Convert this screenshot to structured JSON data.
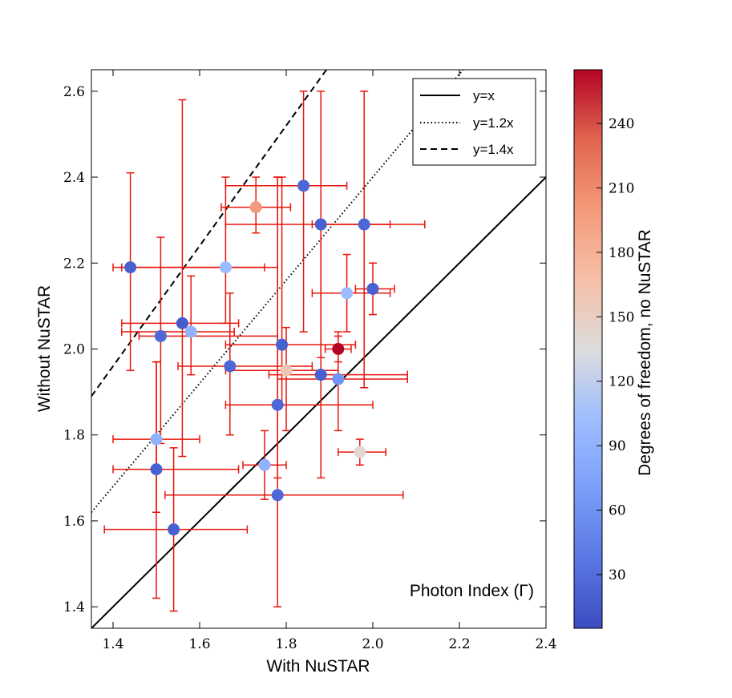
{
  "chart_data": {
    "type": "scatter",
    "xlabel": "With NuSTAR",
    "ylabel": "Without NuSTAR",
    "annotation": "Photon Index (Γ)",
    "xlim": [
      1.35,
      2.4
    ],
    "ylim": [
      1.35,
      2.65
    ],
    "xticks": [
      1.4,
      1.6,
      1.8,
      2.0,
      2.2,
      2.4
    ],
    "xtick_labels": [
      "1.4",
      "1.6",
      "1.8",
      "2.0",
      "2.2",
      "2.4"
    ],
    "yticks": [
      1.4,
      1.6,
      1.8,
      2.0,
      2.2,
      2.4,
      2.6
    ],
    "ytick_labels": [
      "1.4",
      "1.6",
      "1.8",
      "2.0",
      "2.2",
      "2.4",
      "2.6"
    ],
    "lines": [
      {
        "label": "y=x",
        "slope": 1.0,
        "style": "solid"
      },
      {
        "label": "y=1.2x",
        "slope": 1.2,
        "style": "dotted"
      },
      {
        "label": "y=1.4x",
        "slope": 1.4,
        "style": "dashed"
      }
    ],
    "legend_position": "top-right",
    "errorbar_color": "#e8140c",
    "colorbar": {
      "label": "Degrees of freedom, no NuSTAR",
      "range": [
        5,
        265
      ],
      "ticks": [
        30,
        60,
        90,
        120,
        150,
        180,
        210,
        240
      ],
      "tick_labels": [
        "30",
        "60",
        "90",
        "120",
        "150",
        "180",
        "210",
        "240"
      ],
      "colormap": "coolwarm"
    },
    "points": [
      {
        "x": 1.44,
        "y": 2.19,
        "xerr": [
          0.04,
          0.31
        ],
        "yerr": [
          0.24,
          0.22
        ],
        "dof": 20
      },
      {
        "x": 1.51,
        "y": 2.03,
        "xerr": [
          0.05,
          0.27
        ],
        "yerr": [
          0.25,
          0.23
        ],
        "dof": 25
      },
      {
        "x": 1.56,
        "y": 2.06,
        "xerr": [
          0.14,
          0.13
        ],
        "yerr": [
          0.31,
          0.52
        ],
        "dof": 15
      },
      {
        "x": 1.58,
        "y": 2.04,
        "xerr": [
          0.16,
          0.1
        ],
        "yerr": [
          0.1,
          0.13
        ],
        "dof": 90
      },
      {
        "x": 1.66,
        "y": 2.19,
        "xerr": [
          0.24,
          0.12
        ],
        "yerr": [
          0.13,
          0.21
        ],
        "dof": 100
      },
      {
        "x": 1.73,
        "y": 2.33,
        "xerr": [
          0.08,
          0.08
        ],
        "yerr": [
          0.06,
          0.07
        ],
        "dof": 200
      },
      {
        "x": 1.84,
        "y": 2.38,
        "xerr": [
          0.18,
          0.1
        ],
        "yerr": [
          0.34,
          0.22
        ],
        "dof": 25
      },
      {
        "x": 1.88,
        "y": 2.29,
        "xerr": [
          0.22,
          0.16
        ],
        "yerr": [
          0.31,
          0.31
        ],
        "dof": 20
      },
      {
        "x": 1.98,
        "y": 2.29,
        "xerr": [
          0.12,
          0.14
        ],
        "yerr": [
          0.38,
          0.31
        ],
        "dof": 25
      },
      {
        "x": 1.94,
        "y": 2.13,
        "xerr": [
          0.08,
          0.1
        ],
        "yerr": [
          0.09,
          0.09
        ],
        "dof": 100
      },
      {
        "x": 2.0,
        "y": 2.14,
        "xerr": [
          0.04,
          0.05
        ],
        "yerr": [
          0.06,
          0.06
        ],
        "dof": 20
      },
      {
        "x": 1.92,
        "y": 2.0,
        "xerr": [
          0.03,
          0.03
        ],
        "yerr": [
          0.03,
          0.03
        ],
        "dof": 265
      },
      {
        "x": 1.79,
        "y": 2.01,
        "xerr": [
          0.13,
          0.17
        ],
        "yerr": [
          0.14,
          0.39
        ],
        "dof": 20
      },
      {
        "x": 1.67,
        "y": 1.96,
        "xerr": [
          0.12,
          0.19
        ],
        "yerr": [
          0.16,
          0.17
        ],
        "dof": 25
      },
      {
        "x": 1.8,
        "y": 1.95,
        "xerr": [
          0.14,
          0.12
        ],
        "yerr": [
          0.14,
          0.1
        ],
        "dof": 160
      },
      {
        "x": 1.88,
        "y": 1.94,
        "xerr": [
          0.12,
          0.2
        ],
        "yerr": [
          0.24,
          0.36
        ],
        "dof": 20
      },
      {
        "x": 1.92,
        "y": 1.93,
        "xerr": [
          0.14,
          0.16
        ],
        "yerr": [
          0.12,
          0.11
        ],
        "dof": 60
      },
      {
        "x": 1.78,
        "y": 1.87,
        "xerr": [
          0.12,
          0.22
        ],
        "yerr": [
          0.17,
          0.53
        ],
        "dof": 25
      },
      {
        "x": 1.5,
        "y": 1.79,
        "xerr": [
          0.1,
          0.1
        ],
        "yerr": [
          0.17,
          0.18
        ],
        "dof": 90
      },
      {
        "x": 1.97,
        "y": 1.76,
        "xerr": [
          0.05,
          0.06
        ],
        "yerr": [
          0.03,
          0.03
        ],
        "dof": 140
      },
      {
        "x": 1.5,
        "y": 1.72,
        "xerr": [
          0.1,
          0.19
        ],
        "yerr": [
          0.3,
          0.25
        ],
        "dof": 20
      },
      {
        "x": 1.75,
        "y": 1.73,
        "xerr": [
          0.05,
          0.05
        ],
        "yerr": [
          0.08,
          0.08
        ],
        "dof": 90
      },
      {
        "x": 1.78,
        "y": 1.66,
        "xerr": [
          0.26,
          0.29
        ],
        "yerr": [
          0.26,
          0.74
        ],
        "dof": 25
      },
      {
        "x": 1.54,
        "y": 1.58,
        "xerr": [
          0.16,
          0.17
        ],
        "yerr": [
          0.19,
          0.19
        ],
        "dof": 20
      }
    ]
  }
}
